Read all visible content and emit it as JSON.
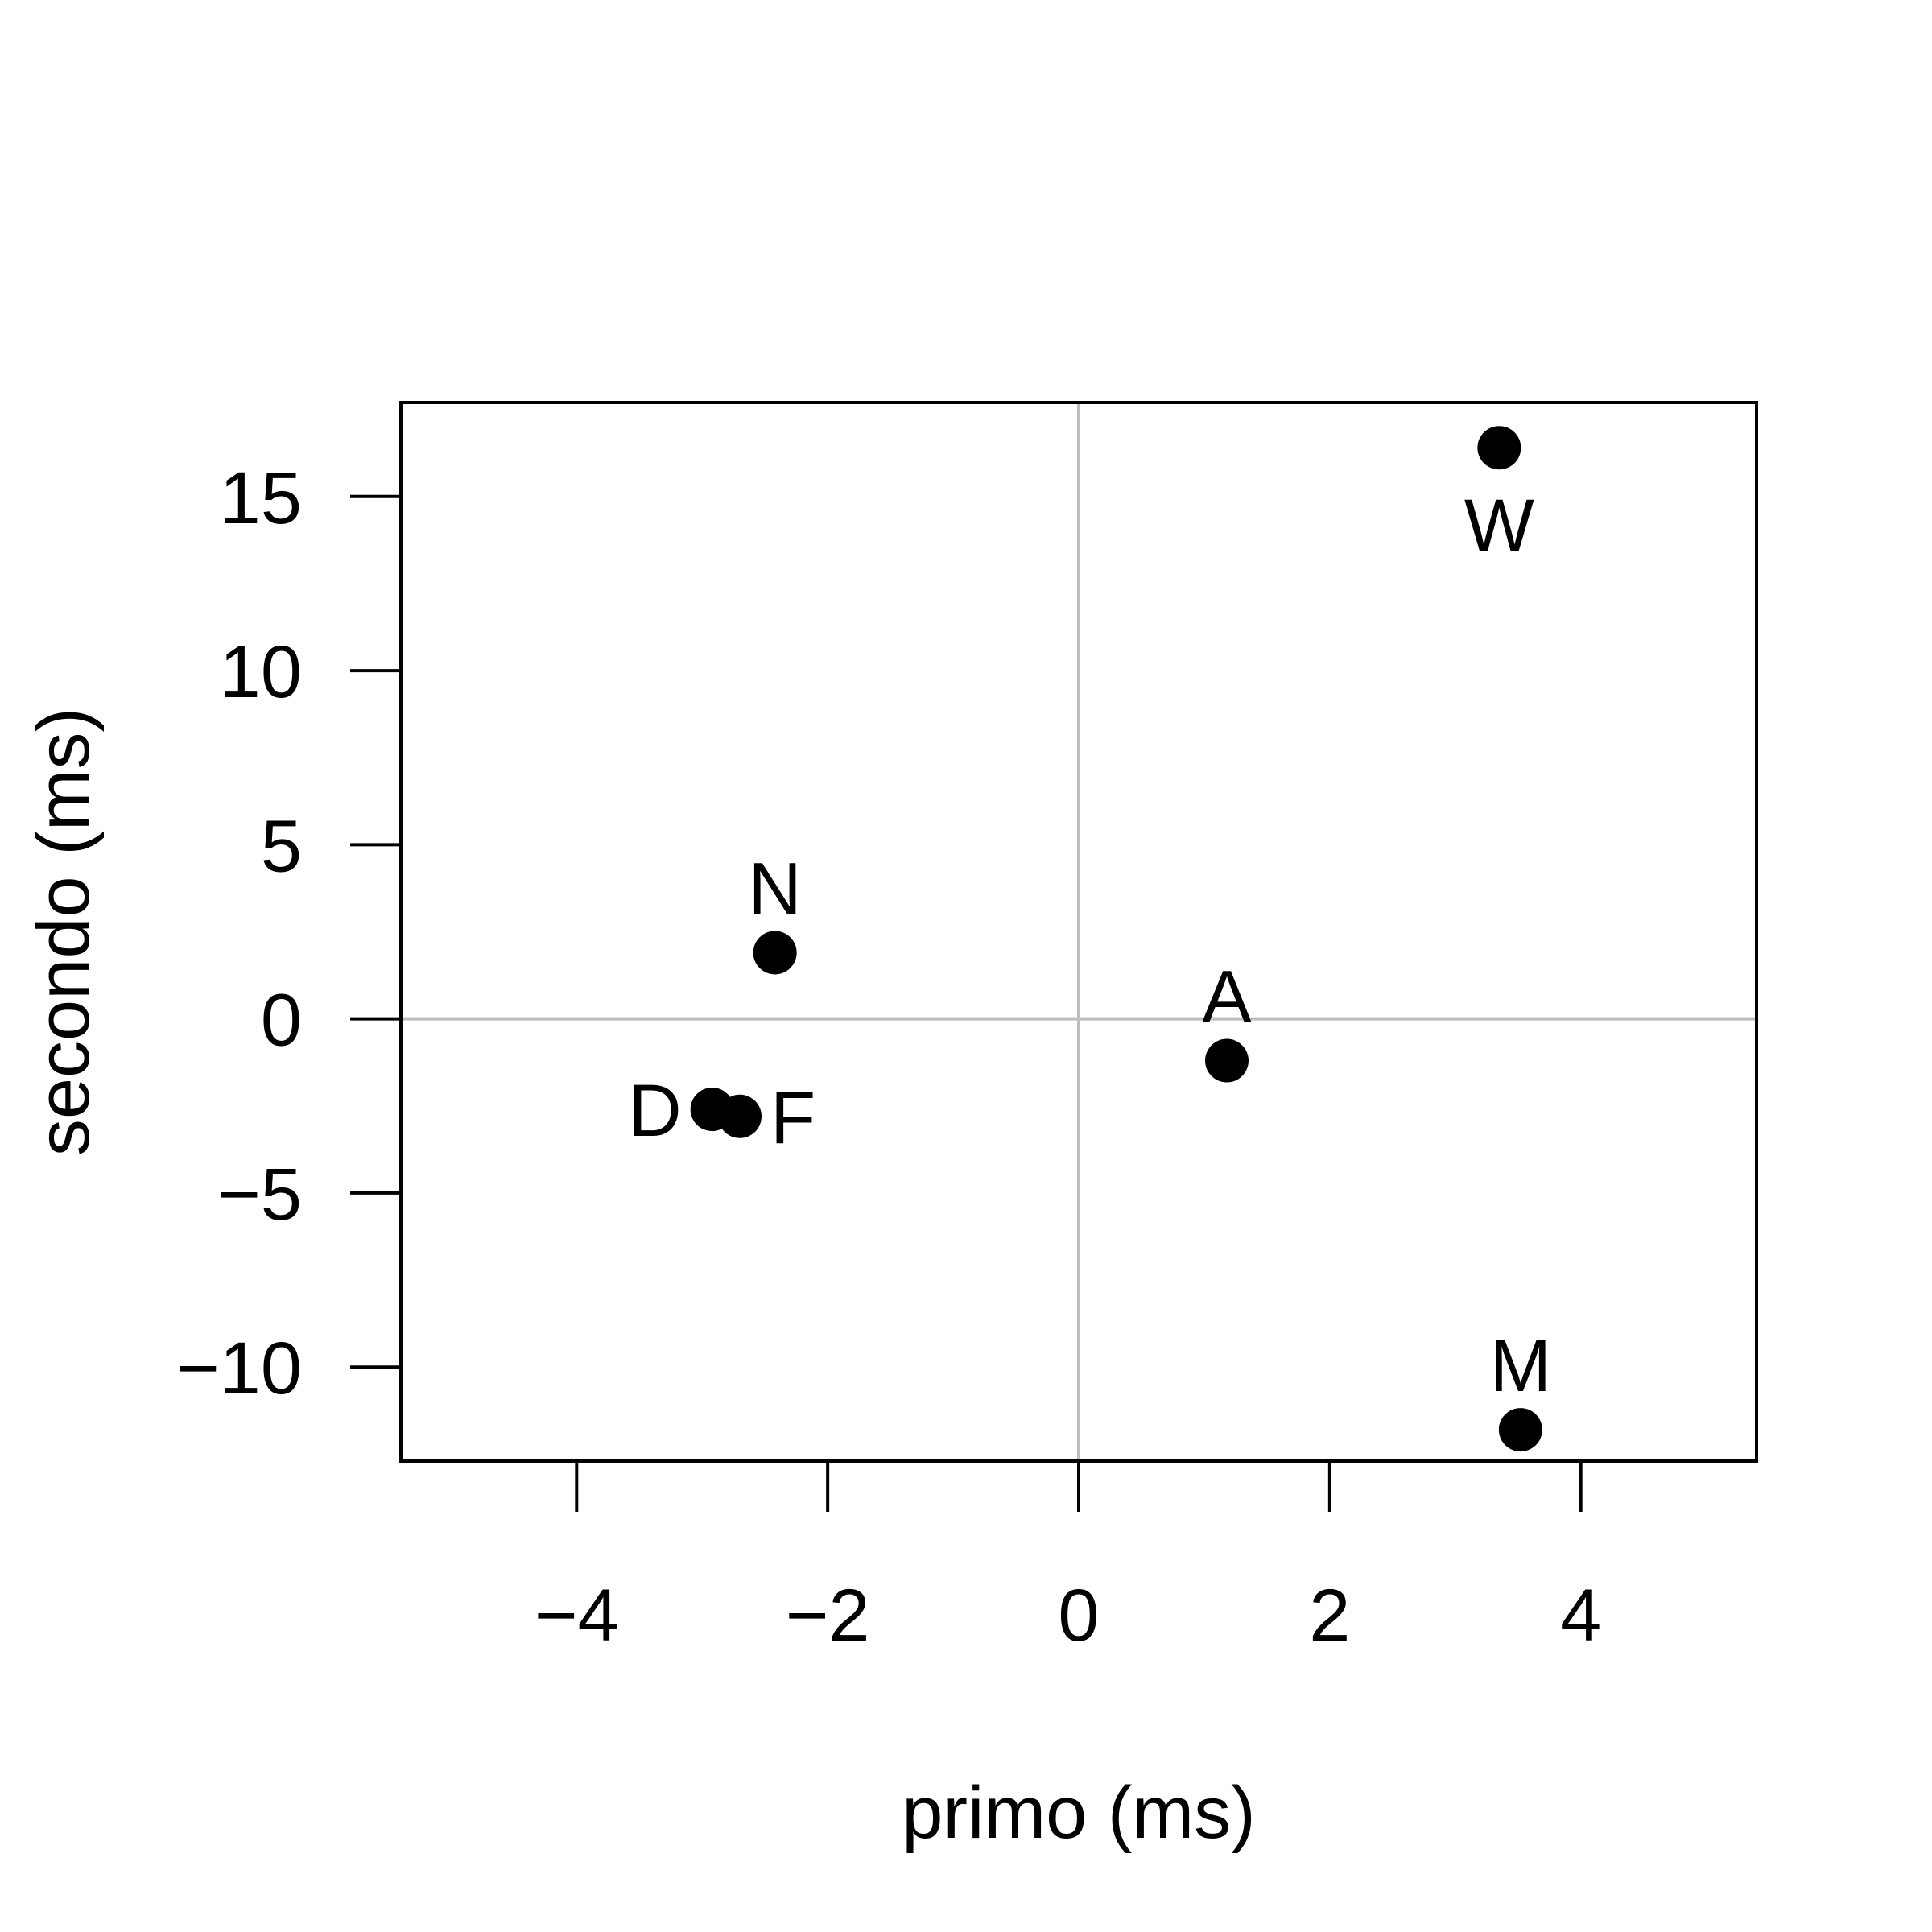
{
  "chart_data": {
    "type": "scatter",
    "title": "",
    "xlabel": "primo (ms)",
    "ylabel": "secondo (ms)",
    "xlim": [
      -5.4,
      5.4
    ],
    "ylim": [
      -12.7,
      17.7
    ],
    "grid": false,
    "reference_lines": {
      "x": 0,
      "y": 0,
      "color": "#bebebe"
    },
    "x_ticks": [
      -4,
      -2,
      0,
      2,
      4
    ],
    "x_tick_labels": [
      "−4",
      "−2",
      "0",
      "2",
      "4"
    ],
    "y_ticks": [
      -10,
      -5,
      0,
      5,
      10,
      15
    ],
    "y_tick_labels": [
      "−10",
      "−5",
      "0",
      "5",
      "10",
      "15"
    ],
    "points": [
      {
        "label": "W",
        "x": 3.35,
        "y": 16.4,
        "label_pos": "below"
      },
      {
        "label": "N",
        "x": -2.42,
        "y": 1.9,
        "label_pos": "above"
      },
      {
        "label": "A",
        "x": 1.18,
        "y": -1.2,
        "label_pos": "above"
      },
      {
        "label": "D",
        "x": -2.92,
        "y": -2.6,
        "label_pos": "left"
      },
      {
        "label": "F",
        "x": -2.7,
        "y": -2.8,
        "label_pos": "right"
      },
      {
        "label": "M",
        "x": 3.52,
        "y": -11.8,
        "label_pos": "above"
      }
    ],
    "point_color": "#000000",
    "axis_color": "#000000"
  }
}
